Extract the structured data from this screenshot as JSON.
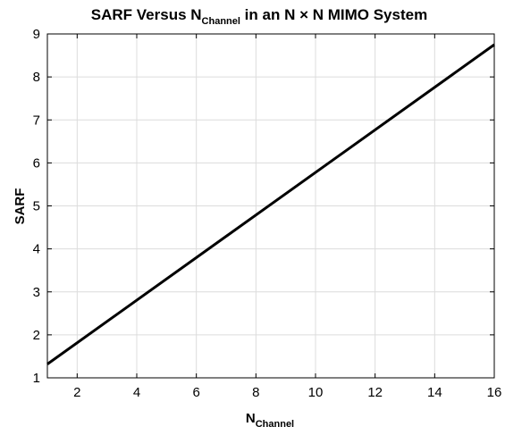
{
  "chart_data": {
    "type": "line",
    "title_parts": {
      "pre": "SARF Versus N",
      "sub": "Channel",
      "post": " in an N × N MIMO System"
    },
    "xlabel_parts": {
      "main": "N",
      "sub": "Channel"
    },
    "ylabel": "SARF",
    "xlim": [
      1,
      16
    ],
    "ylim": [
      1,
      9
    ],
    "xticks": [
      2,
      4,
      6,
      8,
      10,
      12,
      14,
      16
    ],
    "yticks": [
      1,
      2,
      3,
      4,
      5,
      6,
      7,
      8,
      9
    ],
    "grid": true,
    "series": [
      {
        "color": "#000000",
        "x": [
          1,
          16
        ],
        "y": [
          1.32,
          8.75
        ]
      }
    ]
  }
}
